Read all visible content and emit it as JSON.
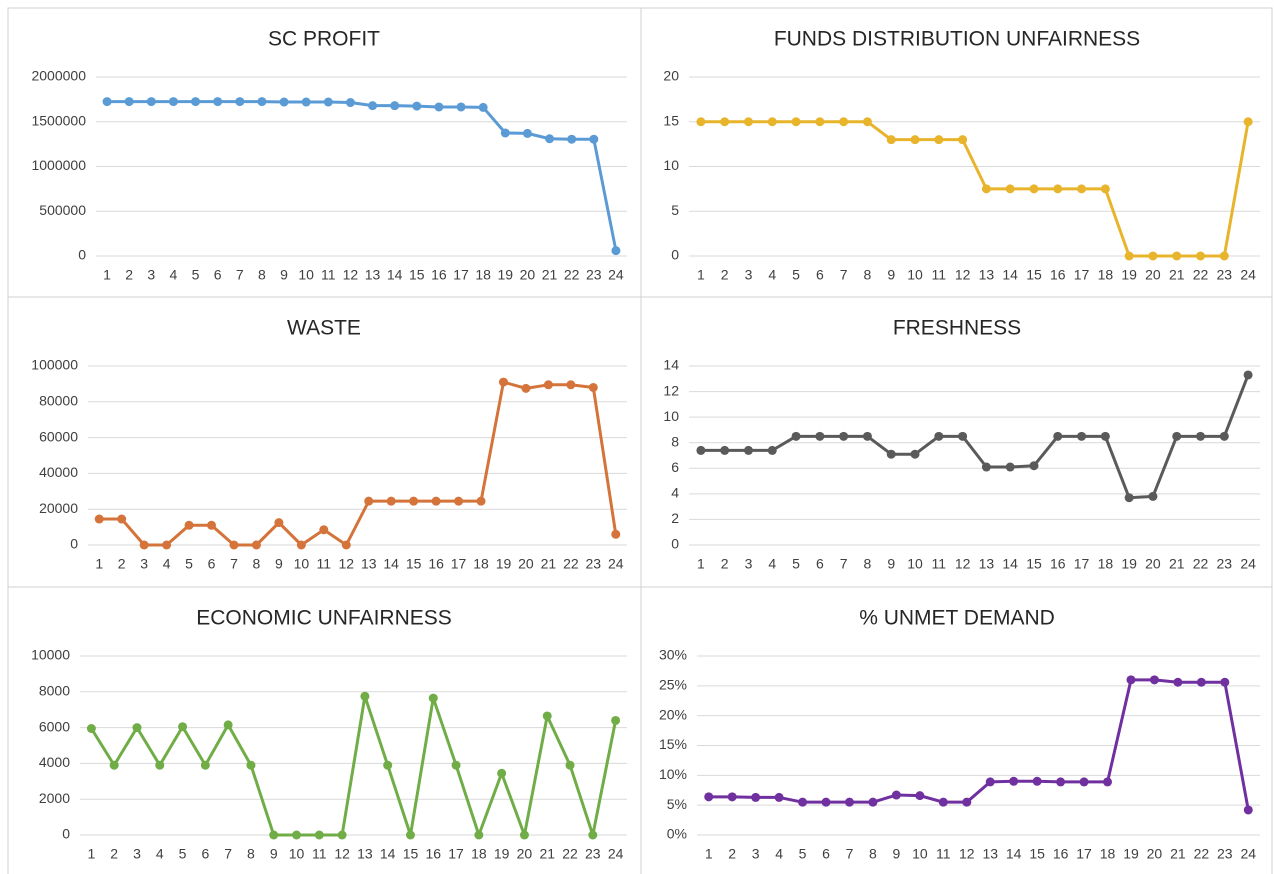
{
  "chart_data": [
    {
      "type": "line",
      "title": "SC PROFIT",
      "color": "#5b9bd5",
      "categories": [
        "1",
        "2",
        "3",
        "4",
        "5",
        "6",
        "7",
        "8",
        "9",
        "10",
        "11",
        "12",
        "13",
        "14",
        "15",
        "16",
        "17",
        "18",
        "19",
        "20",
        "21",
        "22",
        "23",
        "24"
      ],
      "values": [
        1725000,
        1725000,
        1725000,
        1725000,
        1725000,
        1725000,
        1725000,
        1725000,
        1720000,
        1720000,
        1720000,
        1715000,
        1680000,
        1680000,
        1675000,
        1665000,
        1665000,
        1660000,
        1375000,
        1370000,
        1310000,
        1305000,
        1305000,
        60000
      ],
      "ylim": [
        0,
        2000000
      ],
      "yticks": [
        0,
        500000,
        1000000,
        1500000,
        2000000
      ],
      "grid": true
    },
    {
      "type": "line",
      "title": "FUNDS DISTRIBUTION UNFAIRNESS",
      "color": "#e8b42c",
      "categories": [
        "1",
        "2",
        "3",
        "4",
        "5",
        "6",
        "7",
        "8",
        "9",
        "10",
        "11",
        "12",
        "13",
        "14",
        "15",
        "16",
        "17",
        "18",
        "19",
        "20",
        "21",
        "22",
        "23",
        "24"
      ],
      "values": [
        15,
        15,
        15,
        15,
        15,
        15,
        15,
        15,
        13,
        13,
        13,
        13,
        7.5,
        7.5,
        7.5,
        7.5,
        7.5,
        7.5,
        0,
        0,
        0,
        0,
        0,
        15
      ],
      "ylim": [
        0,
        20
      ],
      "yticks": [
        0,
        5,
        10,
        15,
        20
      ],
      "grid": true
    },
    {
      "type": "line",
      "title": "WASTE",
      "color": "#d4733a",
      "categories": [
        "1",
        "2",
        "3",
        "4",
        "5",
        "6",
        "7",
        "8",
        "9",
        "10",
        "11",
        "12",
        "13",
        "14",
        "15",
        "16",
        "17",
        "18",
        "19",
        "20",
        "21",
        "22",
        "23",
        "24"
      ],
      "values": [
        14500,
        14500,
        0,
        0,
        11000,
        11000,
        0,
        0,
        12500,
        0,
        8500,
        0,
        24500,
        24500,
        24500,
        24500,
        24500,
        24500,
        91000,
        87500,
        89500,
        89500,
        88000,
        6000
      ],
      "ylim": [
        0,
        100000
      ],
      "yticks": [
        0,
        20000,
        40000,
        60000,
        80000,
        100000
      ],
      "grid": true
    },
    {
      "type": "line",
      "title": "FRESHNESS",
      "color": "#5a5a5a",
      "categories": [
        "1",
        "2",
        "3",
        "4",
        "5",
        "6",
        "7",
        "8",
        "9",
        "10",
        "11",
        "12",
        "13",
        "14",
        "15",
        "16",
        "17",
        "18",
        "19",
        "20",
        "21",
        "22",
        "23",
        "24"
      ],
      "values": [
        7.4,
        7.4,
        7.4,
        7.4,
        8.5,
        8.5,
        8.5,
        8.5,
        7.1,
        7.1,
        8.5,
        8.5,
        6.1,
        6.1,
        6.2,
        8.5,
        8.5,
        8.5,
        3.7,
        3.8,
        8.5,
        8.5,
        8.5,
        13.3
      ],
      "ylim": [
        0,
        14
      ],
      "yticks": [
        0,
        2,
        4,
        6,
        8,
        10,
        12,
        14
      ],
      "grid": true
    },
    {
      "type": "line",
      "title": "ECONOMIC UNFAIRNESS",
      "color": "#70ad47",
      "categories": [
        "1",
        "2",
        "3",
        "4",
        "5",
        "6",
        "7",
        "8",
        "9",
        "10",
        "11",
        "12",
        "13",
        "14",
        "15",
        "16",
        "17",
        "18",
        "19",
        "20",
        "21",
        "22",
        "23",
        "24"
      ],
      "values": [
        5950,
        3900,
        6000,
        3900,
        6050,
        3900,
        6150,
        3900,
        0,
        0,
        0,
        0,
        7750,
        3900,
        0,
        7650,
        3900,
        0,
        3450,
        0,
        6650,
        3900,
        0,
        6400
      ],
      "ylim": [
        0,
        10000
      ],
      "yticks": [
        0,
        2000,
        4000,
        6000,
        8000,
        10000
      ],
      "grid": true
    },
    {
      "type": "line",
      "title": "% UNMET DEMAND",
      "color": "#7030a0",
      "categories": [
        "1",
        "2",
        "3",
        "4",
        "5",
        "6",
        "7",
        "8",
        "9",
        "10",
        "11",
        "12",
        "13",
        "14",
        "15",
        "16",
        "17",
        "18",
        "19",
        "20",
        "21",
        "22",
        "23",
        "24"
      ],
      "values": [
        6.4,
        6.4,
        6.3,
        6.3,
        5.5,
        5.5,
        5.5,
        5.5,
        6.7,
        6.6,
        5.5,
        5.5,
        8.9,
        9.0,
        9.0,
        8.9,
        8.9,
        8.9,
        26.0,
        26.0,
        25.6,
        25.6,
        25.6,
        4.2
      ],
      "ylim": [
        0,
        30
      ],
      "yticks": [
        {
          "value": 0,
          "label": "0%"
        },
        {
          "value": 5,
          "label": "5%"
        },
        {
          "value": 10,
          "label": "10%"
        },
        {
          "value": 15,
          "label": "15%"
        },
        {
          "value": 20,
          "label": "20%"
        },
        {
          "value": 25,
          "label": "25%"
        },
        {
          "value": 30,
          "label": "30%"
        }
      ],
      "grid": true
    }
  ]
}
